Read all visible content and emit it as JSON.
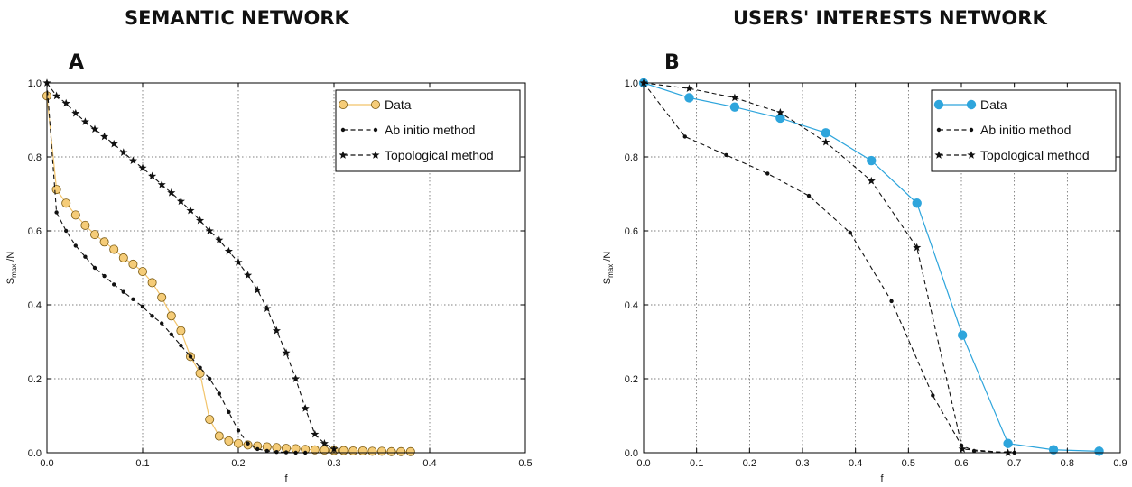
{
  "titles": {
    "left": "SEMANTIC NETWORK",
    "right": "USERS' INTERESTS NETWORK"
  },
  "chart_data": [
    {
      "panel": "A",
      "type": "line",
      "xlabel": "f",
      "ylabel": "S",
      "ylabel_sub": "max",
      "ylabel_tail": " /N",
      "xlim": [
        0,
        0.5
      ],
      "ylim": [
        0,
        1.0
      ],
      "xticks": [
        "0.0",
        "0.1",
        "0.2",
        "0.3",
        "0.4",
        "0.5"
      ],
      "yticks": [
        "0.0",
        "0.2",
        "0.4",
        "0.6",
        "0.8",
        "1.0"
      ],
      "grid": true,
      "legend_position": "top-right",
      "series": [
        {
          "name": "Data",
          "style": "circle-solid",
          "color": "#f2c46b",
          "marker_fill": "#f5cc78",
          "marker_stroke": "#7a5a12",
          "x": [
            0.0,
            0.01,
            0.02,
            0.03,
            0.04,
            0.05,
            0.06,
            0.07,
            0.08,
            0.09,
            0.1,
            0.11,
            0.12,
            0.13,
            0.14,
            0.15,
            0.16,
            0.17,
            0.18,
            0.19,
            0.2,
            0.21,
            0.22,
            0.23,
            0.24,
            0.25,
            0.26,
            0.27,
            0.28,
            0.29,
            0.3,
            0.31,
            0.32,
            0.33,
            0.34,
            0.35,
            0.36,
            0.37,
            0.38
          ],
          "y": [
            0.965,
            0.712,
            0.675,
            0.643,
            0.615,
            0.59,
            0.57,
            0.55,
            0.527,
            0.51,
            0.49,
            0.46,
            0.42,
            0.37,
            0.33,
            0.26,
            0.215,
            0.09,
            0.045,
            0.032,
            0.025,
            0.021,
            0.018,
            0.016,
            0.014,
            0.012,
            0.011,
            0.009,
            0.008,
            0.007,
            0.006,
            0.006,
            0.005,
            0.005,
            0.004,
            0.004,
            0.003,
            0.003,
            0.003
          ]
        },
        {
          "name": "Ab initio method",
          "style": "dot-dashed",
          "color": "#111111",
          "x": [
            0.0,
            0.01,
            0.02,
            0.03,
            0.04,
            0.05,
            0.06,
            0.07,
            0.08,
            0.09,
            0.1,
            0.11,
            0.12,
            0.13,
            0.14,
            0.15,
            0.16,
            0.17,
            0.18,
            0.19,
            0.2,
            0.21,
            0.22,
            0.23,
            0.24,
            0.25,
            0.26,
            0.27
          ],
          "y": [
            1.0,
            0.65,
            0.6,
            0.56,
            0.53,
            0.5,
            0.478,
            0.455,
            0.435,
            0.415,
            0.395,
            0.37,
            0.35,
            0.32,
            0.29,
            0.26,
            0.23,
            0.2,
            0.16,
            0.11,
            0.06,
            0.025,
            0.01,
            0.005,
            0.002,
            0.001,
            0.0,
            0.0
          ]
        },
        {
          "name": "Topological method",
          "style": "star-dashed",
          "color": "#111111",
          "x": [
            0.0,
            0.01,
            0.02,
            0.03,
            0.04,
            0.05,
            0.06,
            0.07,
            0.08,
            0.09,
            0.1,
            0.11,
            0.12,
            0.13,
            0.14,
            0.15,
            0.16,
            0.17,
            0.18,
            0.19,
            0.2,
            0.21,
            0.22,
            0.23,
            0.24,
            0.25,
            0.26,
            0.27,
            0.28,
            0.29,
            0.3
          ],
          "y": [
            1.0,
            0.965,
            0.945,
            0.918,
            0.895,
            0.875,
            0.855,
            0.835,
            0.812,
            0.79,
            0.77,
            0.748,
            0.725,
            0.703,
            0.68,
            0.655,
            0.628,
            0.6,
            0.575,
            0.545,
            0.515,
            0.48,
            0.44,
            0.39,
            0.33,
            0.27,
            0.2,
            0.12,
            0.05,
            0.025,
            0.01
          ]
        }
      ]
    },
    {
      "panel": "B",
      "type": "line",
      "xlabel": "f",
      "ylabel": "S",
      "ylabel_sub": "max",
      "ylabel_tail": " /N",
      "xlim": [
        0,
        0.9
      ],
      "ylim": [
        0,
        1.0
      ],
      "xticks": [
        "0.0",
        "0.1",
        "0.2",
        "0.3",
        "0.4",
        "0.5",
        "0.6",
        "0.7",
        "0.8",
        "0.9"
      ],
      "yticks": [
        "0.0",
        "0.2",
        "0.4",
        "0.6",
        "0.8",
        "1.0"
      ],
      "grid": true,
      "legend_position": "top-right",
      "series": [
        {
          "name": "Data",
          "style": "circle-solid",
          "color": "#2ea5dc",
          "marker_fill": "#2ea5dc",
          "marker_stroke": "#2ea5dc",
          "x": [
            0.0,
            0.086,
            0.172,
            0.258,
            0.344,
            0.43,
            0.516,
            0.602,
            0.688,
            0.774,
            0.86
          ],
          "y": [
            1.0,
            0.96,
            0.935,
            0.905,
            0.865,
            0.79,
            0.675,
            0.318,
            0.025,
            0.008,
            0.004
          ]
        },
        {
          "name": "Ab initio method",
          "style": "dot-dashed",
          "color": "#111111",
          "x": [
            0.0,
            0.078,
            0.156,
            0.234,
            0.312,
            0.39,
            0.468,
            0.546,
            0.6,
            0.624,
            0.7
          ],
          "y": [
            1.0,
            0.855,
            0.805,
            0.755,
            0.695,
            0.595,
            0.41,
            0.155,
            0.02,
            0.005,
            0.0
          ]
        },
        {
          "name": "Topological method",
          "style": "star-dashed",
          "color": "#111111",
          "x": [
            0.0,
            0.086,
            0.172,
            0.258,
            0.344,
            0.43,
            0.516,
            0.602,
            0.688
          ],
          "y": [
            1.0,
            0.985,
            0.96,
            0.92,
            0.84,
            0.735,
            0.555,
            0.01,
            0.0
          ]
        }
      ]
    }
  ]
}
